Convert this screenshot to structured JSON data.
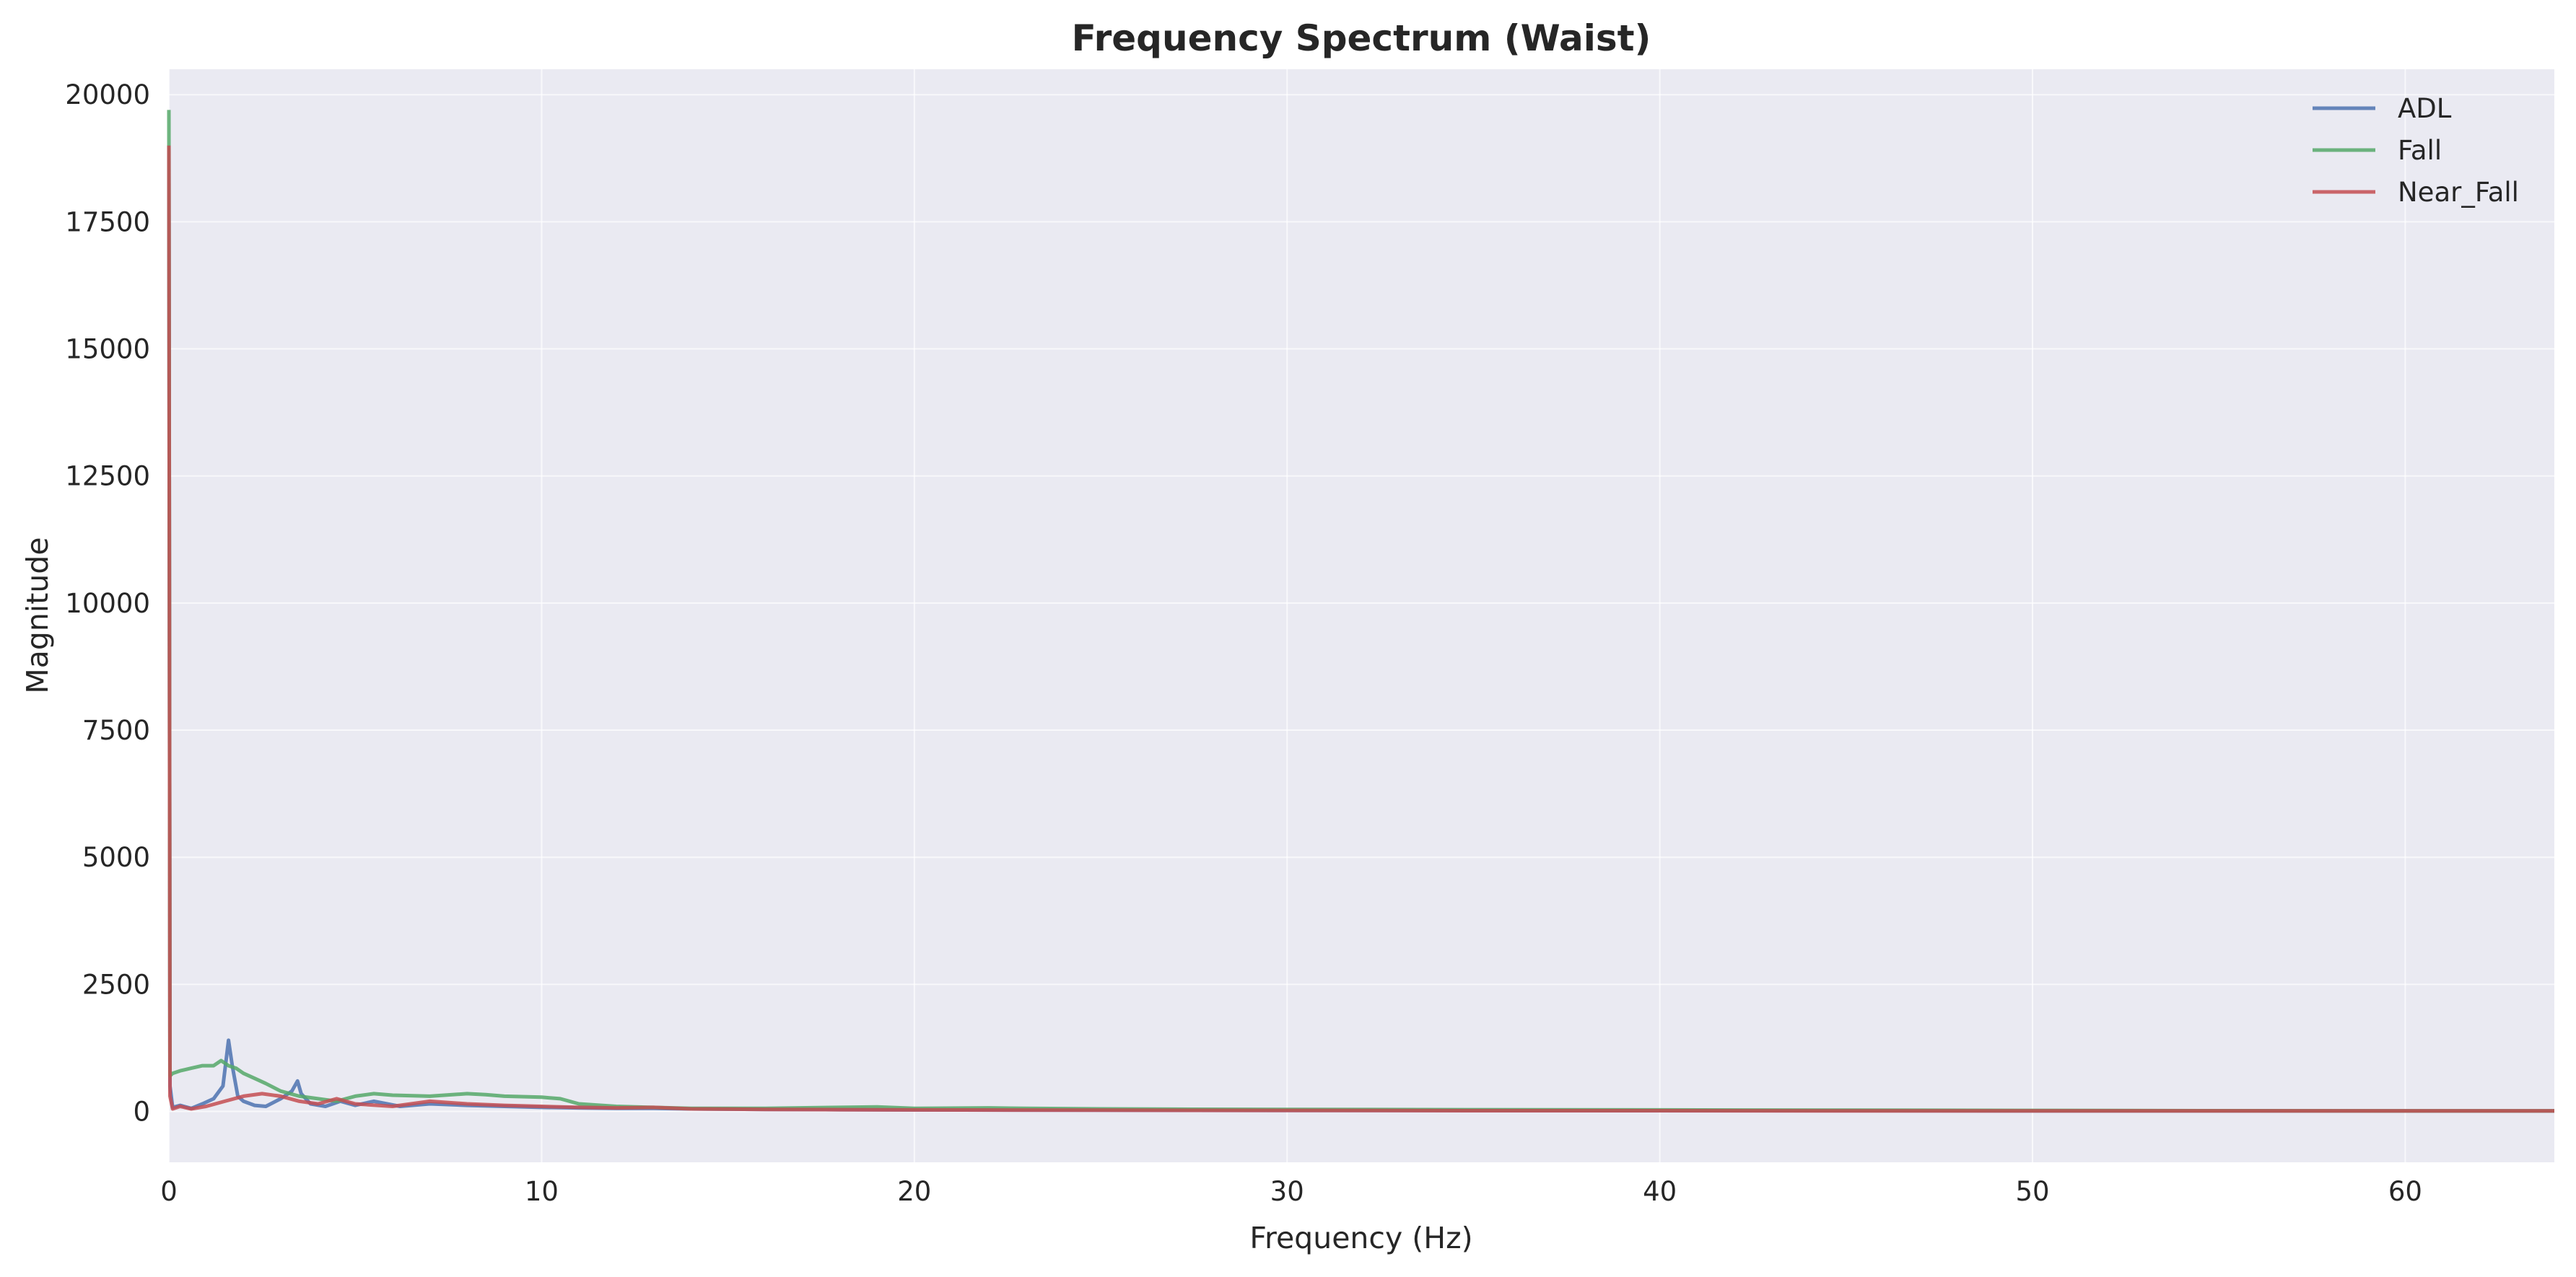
{
  "chart_data": {
    "type": "line",
    "title": "Frequency Spectrum (Waist)",
    "xlabel": "Frequency (Hz)",
    "ylabel": "Magnitude",
    "xlim": [
      0,
      64
    ],
    "ylim": [
      -1000,
      20500
    ],
    "xticks": [
      0,
      10,
      20,
      30,
      40,
      50,
      60
    ],
    "yticks": [
      0,
      2500,
      5000,
      7500,
      10000,
      12500,
      15000,
      17500,
      20000
    ],
    "grid": true,
    "legend_position": "top-right",
    "plot_background": "#EAEAF2",
    "series": [
      {
        "name": "ADL",
        "color": "#4C72B0",
        "x": [
          0,
          0.03,
          0.1,
          0.3,
          0.6,
          0.9,
          1.2,
          1.45,
          1.6,
          1.7,
          1.85,
          2.0,
          2.3,
          2.6,
          3.0,
          3.3,
          3.45,
          3.55,
          3.8,
          4.2,
          4.6,
          5.0,
          5.5,
          6.2,
          7.0,
          8.0,
          9.0,
          10,
          11,
          12,
          13,
          14,
          16,
          18,
          20,
          25,
          30,
          35,
          40,
          45,
          50,
          55,
          60,
          64
        ],
        "y": [
          19000,
          500,
          80,
          120,
          60,
          150,
          250,
          500,
          1400,
          900,
          300,
          200,
          120,
          100,
          250,
          400,
          600,
          350,
          150,
          100,
          200,
          120,
          200,
          100,
          150,
          120,
          100,
          80,
          70,
          60,
          60,
          50,
          40,
          35,
          30,
          25,
          20,
          20,
          15,
          15,
          10,
          10,
          10,
          10
        ]
      },
      {
        "name": "Fall",
        "color": "#55A868",
        "x": [
          0,
          0.03,
          0.1,
          0.3,
          0.6,
          0.9,
          1.2,
          1.4,
          1.6,
          1.8,
          2.0,
          2.3,
          2.6,
          3.0,
          3.5,
          4.0,
          4.5,
          5.0,
          5.5,
          6.0,
          7.0,
          8.0,
          8.5,
          9.0,
          10.0,
          10.5,
          11,
          12,
          14,
          16,
          18,
          19,
          20,
          22,
          23,
          25,
          27,
          30,
          35,
          40,
          45,
          50,
          55,
          60,
          64
        ],
        "y": [
          19700,
          700,
          750,
          800,
          850,
          900,
          900,
          1000,
          900,
          850,
          750,
          650,
          550,
          400,
          300,
          250,
          200,
          300,
          350,
          320,
          300,
          350,
          330,
          300,
          280,
          250,
          150,
          100,
          60,
          60,
          80,
          90,
          60,
          70,
          60,
          50,
          45,
          40,
          35,
          30,
          25,
          20,
          15,
          10,
          10
        ]
      },
      {
        "name": "Near_Fall",
        "color": "#C44E52",
        "x": [
          0,
          0.03,
          0.1,
          0.3,
          0.6,
          1.0,
          1.5,
          2.0,
          2.5,
          3.0,
          3.5,
          4.0,
          4.5,
          5.0,
          6.0,
          7.0,
          8.0,
          9.0,
          10,
          11,
          12,
          13,
          14,
          16,
          18,
          20,
          25,
          30,
          35,
          40,
          45,
          50,
          55,
          60,
          64
        ],
        "y": [
          19000,
          300,
          50,
          100,
          50,
          100,
          200,
          300,
          350,
          300,
          200,
          150,
          250,
          150,
          100,
          200,
          150,
          120,
          100,
          80,
          70,
          80,
          50,
          40,
          35,
          30,
          25,
          20,
          15,
          15,
          10,
          10,
          10,
          10,
          10
        ]
      }
    ]
  }
}
